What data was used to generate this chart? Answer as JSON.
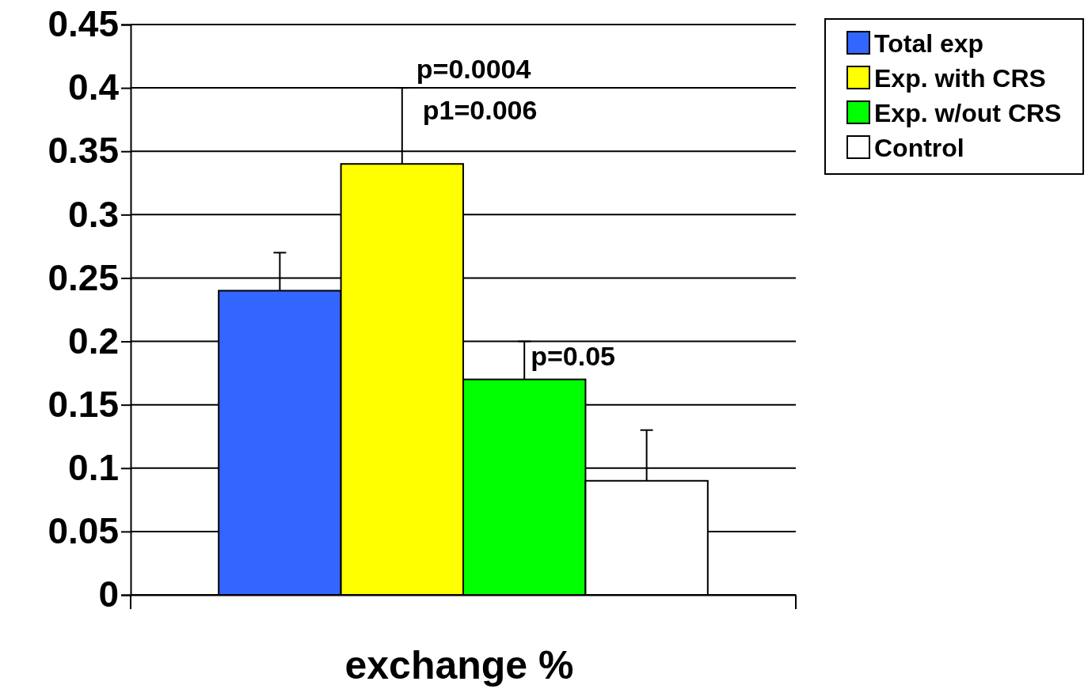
{
  "chart_data": {
    "type": "bar",
    "xlabel": "exchange %",
    "categories": [
      null
    ],
    "series": [
      {
        "name": "Total exp",
        "color": "#3366ff",
        "values": [
          0.24
        ],
        "errors": [
          [
            0.24,
            0.27
          ]
        ]
      },
      {
        "name": "Exp. with CRS",
        "color": "#ffff00",
        "values": [
          0.34
        ],
        "errors": [
          [
            0.34,
            0.4
          ]
        ]
      },
      {
        "name": "Exp. w/out CRS",
        "color": "#00ff00",
        "values": [
          0.17
        ],
        "errors": [
          [
            0.17,
            0.2
          ]
        ]
      },
      {
        "name": "Control",
        "color": "#ffffff",
        "values": [
          0.09
        ],
        "errors": [
          [
            0.09,
            0.13
          ]
        ]
      }
    ],
    "ylim": [
      0,
      0.45
    ],
    "yticks": [
      0,
      0.05,
      0.1,
      0.15,
      0.2,
      0.25,
      0.3,
      0.35,
      0.4,
      0.45
    ],
    "grid": "y",
    "legend": "top right",
    "annotations": [
      "p=0.0004",
      "p1=0.006",
      "p=0.05"
    ]
  }
}
